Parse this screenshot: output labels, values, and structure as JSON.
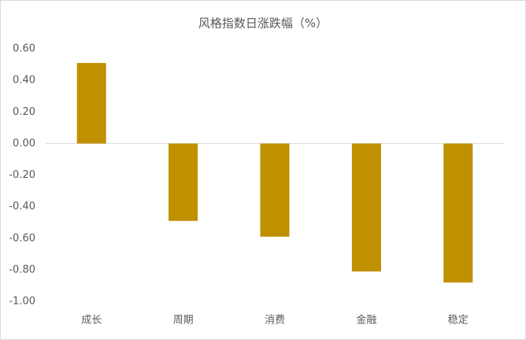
{
  "chart_data": {
    "type": "bar",
    "title": "风格指数日涨跌幅（%）",
    "categories": [
      "成长",
      "周期",
      "消费",
      "金融",
      "稳定"
    ],
    "values": [
      0.51,
      -0.49,
      -0.59,
      -0.81,
      -0.88
    ],
    "color": "#bf9000",
    "ylim": [
      -1,
      0.6
    ],
    "yticks": [
      {
        "value": 0.6,
        "label": "0.60"
      },
      {
        "value": 0.4,
        "label": "0.40"
      },
      {
        "value": 0.2,
        "label": "0.20"
      },
      {
        "value": 0,
        "label": "0.00"
      },
      {
        "value": -0.2,
        "label": "-0.20"
      },
      {
        "value": -0.4,
        "label": "-0.40"
      },
      {
        "value": -0.6,
        "label": "-0.60"
      },
      {
        "value": -0.8,
        "label": "-0.80"
      },
      {
        "value": -1,
        "label": "-1.00"
      }
    ],
    "grid": false
  }
}
